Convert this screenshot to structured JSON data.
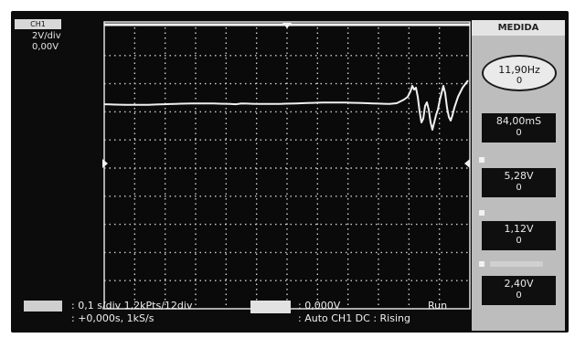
{
  "channel": {
    "label": "CH1",
    "volts_per_div": "2V/div",
    "offset": "0,00V"
  },
  "screen": {
    "trace_color": "#f0f0f0",
    "grid_color": "#cfcfcf"
  },
  "sidebar": {
    "title": "MEDIDA",
    "measurements": [
      {
        "value": "11,90Hz",
        "sub": "0",
        "highlighted": true
      },
      {
        "value": "84,00mS",
        "sub": "0"
      },
      {
        "value": "5,28V",
        "sub": "0"
      },
      {
        "value": "1,12V",
        "sub": "0"
      },
      {
        "value": "2,40V",
        "sub": "0"
      }
    ]
  },
  "status": {
    "timebase": ": 0,1 s/div 1,2kPts/12div",
    "position": ": +0,000s, 1kS/s",
    "trigger_level": ": 0,000V",
    "trigger_mode": ": Auto CH1 DC : Rising",
    "run_state": "Run"
  }
}
